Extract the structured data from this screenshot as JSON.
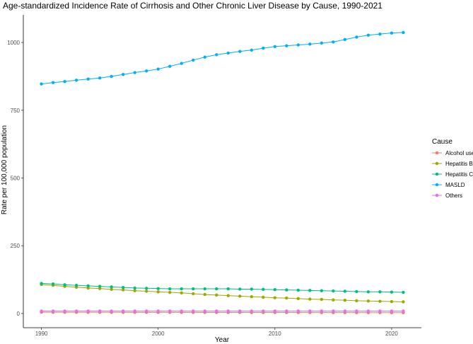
{
  "chart_data": {
    "type": "line",
    "title": "Age-standardized Incidence Rate of Cirrhosis and Other Chronic Liver Disease by Cause, 1990-2021",
    "xlabel": "Year",
    "ylabel": "Rate per 100,000 population",
    "xlim": [
      1990,
      2021
    ],
    "ylim": [
      0,
      1000
    ],
    "x_ticks": [
      1990,
      2000,
      2010,
      2020
    ],
    "y_ticks": [
      0,
      250,
      500,
      750,
      1000
    ],
    "grid": false,
    "legend": {
      "title": "Cause",
      "placement": "right"
    },
    "x": [
      1990,
      1991,
      1992,
      1993,
      1994,
      1995,
      1996,
      1997,
      1998,
      1999,
      2000,
      2001,
      2002,
      2003,
      2004,
      2005,
      2006,
      2007,
      2008,
      2009,
      2010,
      2011,
      2012,
      2013,
      2014,
      2015,
      2016,
      2017,
      2018,
      2019,
      2020,
      2021
    ],
    "series": [
      {
        "name": "Alcohol use",
        "color": "#F8766D",
        "values": [
          4.5,
          4.5,
          4.4,
          4.4,
          4.3,
          4.3,
          4.2,
          4.2,
          4.1,
          4.1,
          4.0,
          4.0,
          3.9,
          3.9,
          3.8,
          3.8,
          3.7,
          3.7,
          3.6,
          3.6,
          3.5,
          3.5,
          3.4,
          3.4,
          3.3,
          3.3,
          3.2,
          3.2,
          3.1,
          3.1,
          3.0,
          3.0
        ]
      },
      {
        "name": "Hepatitis B",
        "color": "#A3A500",
        "values": [
          107,
          104,
          100,
          97,
          94,
          92,
          89,
          87,
          84,
          82,
          80,
          78,
          76,
          73,
          70,
          68,
          66,
          64,
          62,
          60,
          58,
          57,
          55,
          53,
          52,
          50,
          49,
          47,
          46,
          45,
          44,
          43
        ]
      },
      {
        "name": "Hepatitis C",
        "color": "#00BF7D",
        "values": [
          111,
          109,
          106,
          104,
          102,
          100,
          98,
          96,
          94,
          93,
          92,
          91,
          91,
          91,
          91,
          91,
          91,
          90,
          90,
          89,
          88,
          87,
          86,
          85,
          84,
          83,
          82,
          81,
          80,
          80,
          79,
          78
        ]
      },
      {
        "name": "MASLD",
        "color": "#00B0F6",
        "values": [
          847,
          852,
          856,
          861,
          865,
          869,
          875,
          882,
          889,
          895,
          902,
          912,
          923,
          935,
          946,
          955,
          961,
          967,
          972,
          979,
          985,
          988,
          991,
          994,
          998,
          1002,
          1011,
          1020,
          1027,
          1031,
          1035,
          1037
        ]
      },
      {
        "name": "Others",
        "color": "#E76BF3",
        "values": [
          9,
          9,
          9,
          9,
          9,
          9,
          9,
          9,
          9,
          9,
          9,
          9,
          9,
          9,
          9,
          9,
          9,
          9,
          9,
          9,
          9,
          9,
          9,
          9,
          9,
          9,
          9,
          9,
          9,
          9,
          9,
          9
        ]
      }
    ]
  }
}
